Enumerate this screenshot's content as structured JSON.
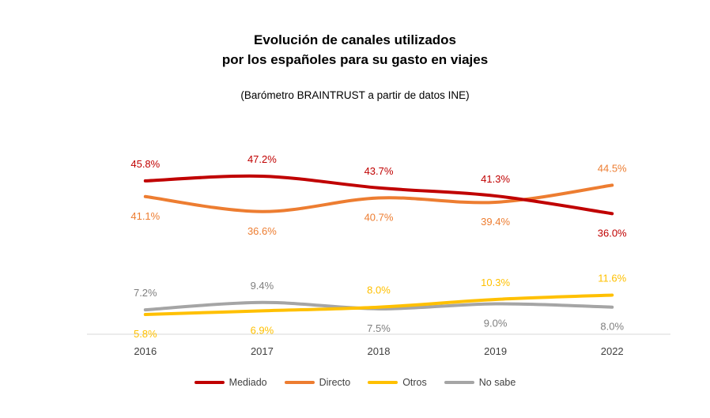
{
  "chart_data": {
    "type": "line",
    "title_line1": "Evolución de canales utilizados",
    "title_line2": "por los españoles para su gasto en viajes",
    "subtitle": "(Barómetro BRAINTRUST a partir de datos INE)",
    "categories": [
      "2016",
      "2017",
      "2018",
      "2019",
      "2022"
    ],
    "ylim": [
      0,
      60
    ],
    "grid": false,
    "legend_position": "bottom",
    "series": [
      {
        "name": "Mediado",
        "color": "#c00000",
        "values": [
          45.8,
          47.2,
          43.7,
          41.3,
          36.0
        ],
        "labels": [
          "45.8%",
          "47.2%",
          "43.7%",
          "41.3%",
          "36.0%"
        ]
      },
      {
        "name": "Directo",
        "color": "#ed7d31",
        "values": [
          41.1,
          36.6,
          40.7,
          39.4,
          44.5
        ],
        "labels": [
          "41.1%",
          "36.6%",
          "40.7%",
          "39.4%",
          "44.5%"
        ]
      },
      {
        "name": "Otros",
        "color": "#ffc000",
        "values": [
          5.8,
          6.9,
          8.0,
          10.3,
          11.6
        ],
        "labels": [
          "5.8%",
          "6.9%",
          "8.0%",
          "10.3%",
          "11.6%"
        ]
      },
      {
        "name": "No sabe",
        "color": "#a5a5a5",
        "values": [
          7.2,
          9.4,
          7.5,
          9.0,
          8.0
        ],
        "labels": [
          "7.2%",
          "9.4%",
          "7.5%",
          "9.0%",
          "8.0%"
        ]
      }
    ]
  }
}
